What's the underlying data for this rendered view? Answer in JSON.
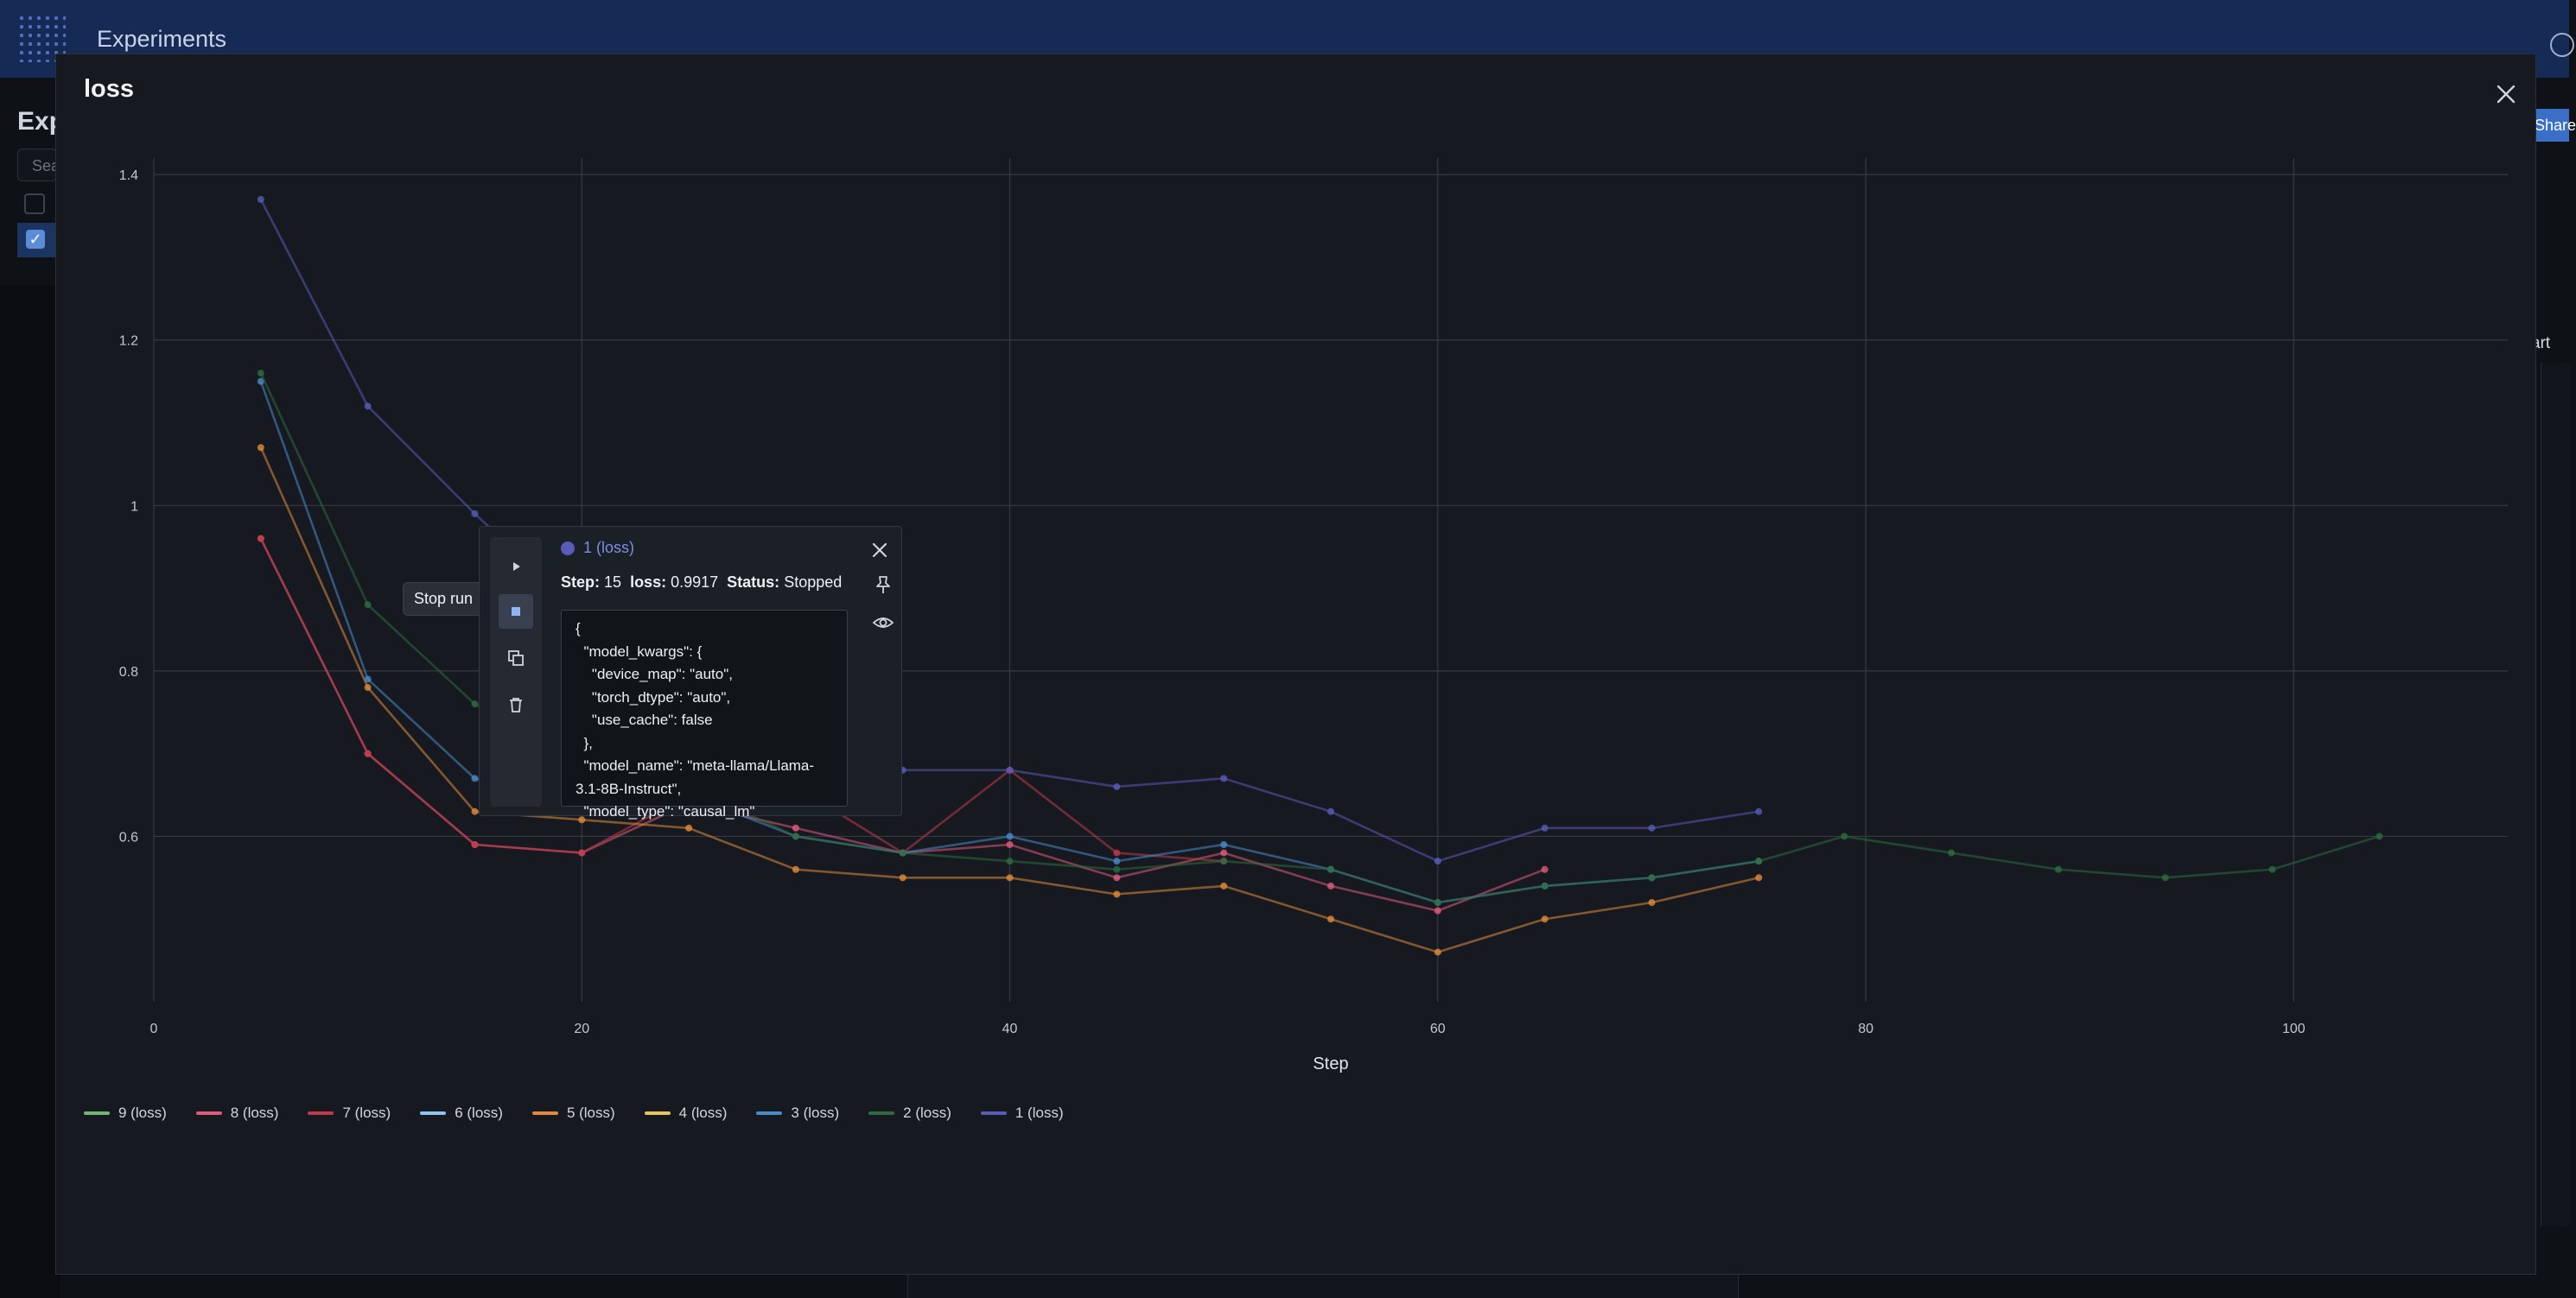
{
  "app": {
    "title": "Experiments",
    "sidebar_heading": "Exp",
    "search_placeholder": "Sea",
    "share_label": "Share",
    "chart_button_label": "art"
  },
  "modal": {
    "title": "loss"
  },
  "chart_data": {
    "type": "line",
    "title": "",
    "xlabel": "Step",
    "ylabel": "",
    "xlim": [
      0,
      110
    ],
    "ylim": [
      0.4,
      1.42
    ],
    "xticks": [
      0,
      20,
      40,
      60,
      80,
      100
    ],
    "yticks": [
      0.6,
      0.8,
      1,
      1.2,
      1.4
    ],
    "grid": true,
    "legend_position": "bottom-left",
    "series": [
      {
        "name": "9 (loss)",
        "color": "#6fb86f",
        "x": [],
        "y": []
      },
      {
        "name": "8 (loss)",
        "color": "#e05a7a",
        "x": [
          5,
          10,
          15,
          20,
          25,
          30,
          35,
          40,
          45,
          50,
          55,
          60,
          65
        ],
        "y": [
          0.96,
          0.7,
          0.59,
          0.58,
          0.64,
          0.61,
          0.58,
          0.59,
          0.55,
          0.58,
          0.54,
          0.51,
          0.56
        ]
      },
      {
        "name": "7 (loss)",
        "color": "#c03a4a",
        "x": [
          5,
          10,
          15,
          20,
          25,
          30,
          35,
          40,
          45,
          50
        ],
        "y": [
          0.96,
          0.7,
          0.59,
          0.58,
          0.65,
          0.66,
          0.58,
          0.68,
          0.58,
          0.57
        ]
      },
      {
        "name": "6 (loss)",
        "color": "#8cc4f0",
        "x": [],
        "y": []
      },
      {
        "name": "5 (loss)",
        "color": "#e08a3a",
        "x": [
          5,
          10,
          15,
          20,
          25,
          30,
          35,
          40,
          45,
          50,
          55,
          60,
          65,
          70,
          75
        ],
        "y": [
          1.07,
          0.78,
          0.63,
          0.62,
          0.61,
          0.56,
          0.55,
          0.55,
          0.53,
          0.54,
          0.5,
          0.46,
          0.5,
          0.52,
          0.55
        ]
      },
      {
        "name": "4 (loss)",
        "color": "#e6c65a",
        "x": [],
        "y": []
      },
      {
        "name": "3 (loss)",
        "color": "#4a8ac8",
        "x": [
          5,
          10,
          15,
          20,
          25,
          30,
          35,
          40,
          45,
          50,
          55,
          60,
          65,
          70,
          75
        ],
        "y": [
          1.15,
          0.79,
          0.67,
          0.64,
          0.65,
          0.6,
          0.58,
          0.6,
          0.57,
          0.59,
          0.56,
          0.52,
          0.54,
          0.55,
          0.57
        ]
      },
      {
        "name": "2 (loss)",
        "color": "#2e6b3e",
        "x": [
          5,
          10,
          15,
          20,
          25,
          30,
          35,
          40,
          45,
          50,
          55,
          60,
          65,
          70,
          75,
          79,
          84,
          89,
          94,
          99,
          104
        ],
        "y": [
          1.16,
          0.88,
          0.76,
          0.68,
          0.66,
          0.6,
          0.58,
          0.57,
          0.56,
          0.57,
          0.56,
          0.52,
          0.54,
          0.55,
          0.57,
          0.6,
          0.58,
          0.56,
          0.55,
          0.56,
          0.6
        ]
      },
      {
        "name": "1 (loss)",
        "color": "#5a5ab8",
        "x": [
          5,
          10,
          15,
          20,
          25,
          30,
          35,
          40,
          45,
          50,
          55,
          60,
          65,
          70,
          75
        ],
        "y": [
          1.37,
          1.12,
          0.99,
          0.87,
          0.76,
          0.7,
          0.68,
          0.68,
          0.66,
          0.67,
          0.63,
          0.57,
          0.61,
          0.61,
          0.63
        ]
      }
    ]
  },
  "popup": {
    "tooltip": "Stop run",
    "run_label": "1 (loss)",
    "step_label": "Step:",
    "step_value": "15",
    "loss_label": "loss:",
    "loss_value": "0.9917",
    "status_label": "Status:",
    "status_value": "Stopped",
    "config": "{\n  \"model_kwargs\": {\n    \"device_map\": \"auto\",\n    \"torch_dtype\": \"auto\",\n    \"use_cache\": false\n  },\n  \"model_name\": \"meta-llama/Llama-3.1-8B-Instruct\",\n  \"model_type\": \"causal_lm\""
  }
}
